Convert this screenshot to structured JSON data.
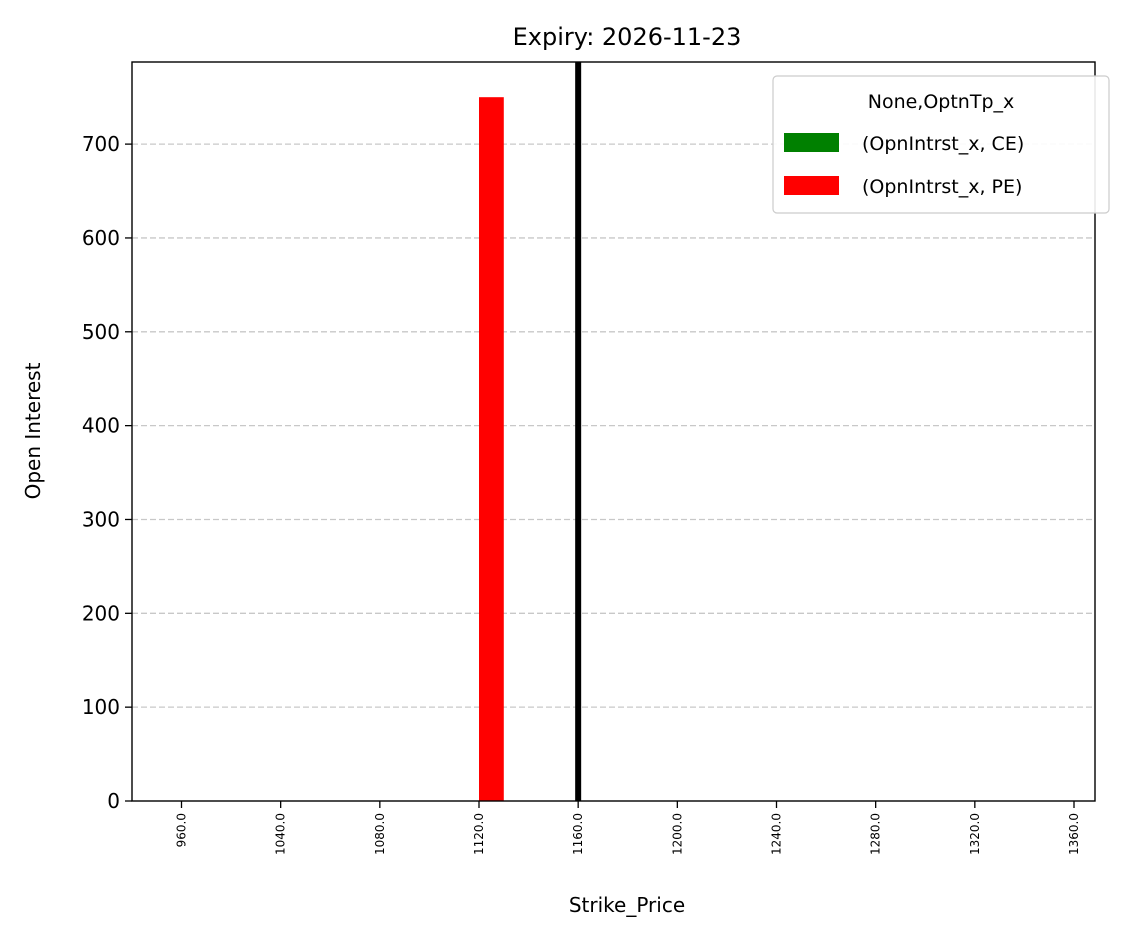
{
  "chart_data": {
    "type": "bar",
    "title": "Expiry: 2026-11-23",
    "xlabel": "Strike_Price",
    "ylabel": "Open Interest",
    "categories": [
      "960.0",
      "1040.0",
      "1080.0",
      "1120.0",
      "1160.0",
      "1200.0",
      "1240.0",
      "1280.0",
      "1320.0",
      "1360.0"
    ],
    "series": [
      {
        "name": "(OpnIntrst_x, CE)",
        "color": "#008000",
        "values": [
          0,
          0,
          0,
          0,
          0,
          0,
          0,
          0,
          0,
          0
        ]
      },
      {
        "name": "(OpnIntrst_x, PE)",
        "color": "#ff0000",
        "values": [
          0,
          0,
          0,
          750,
          0,
          0,
          0,
          0,
          0,
          0
        ]
      }
    ],
    "legend_title": "None,OptnTp_x",
    "legend_position": "top-right",
    "ylim": [
      0,
      787.5
    ],
    "yticks": [
      0,
      100,
      200,
      300,
      400,
      500,
      600,
      700
    ],
    "grid": "y-dashed",
    "vertical_line": {
      "category": "1160.0",
      "color": "#000000"
    }
  }
}
